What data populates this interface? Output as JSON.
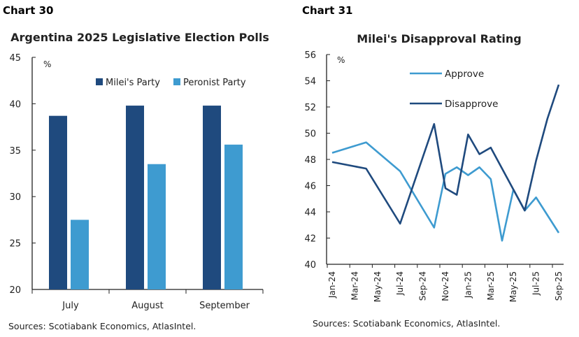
{
  "chart_data": [
    {
      "label": "Chart 30",
      "type": "bar",
      "title": "Argentina 2025 Legislative Election Polls",
      "ylabel": "%",
      "ylim": [
        20,
        45
      ],
      "yticks": [
        20,
        25,
        30,
        35,
        40,
        45
      ],
      "categories": [
        "July",
        "August",
        "September"
      ],
      "series": [
        {
          "name": "Milei's Party",
          "color": "#1f4a7e",
          "values": [
            38.7,
            39.8,
            39.8
          ]
        },
        {
          "name": "Peronist Party",
          "color": "#3e9bd0",
          "values": [
            27.5,
            33.5,
            35.6
          ]
        }
      ],
      "legend": "top-right",
      "source": "Sources: Scotiabank Economics, AtlasIntel."
    },
    {
      "label": "Chart 31",
      "type": "line",
      "title": "Milei's Disapproval Rating",
      "ylabel": "%",
      "ylim": [
        40,
        56
      ],
      "yticks": [
        40,
        42,
        44,
        46,
        48,
        50,
        52,
        54,
        56
      ],
      "xticks": [
        "Jan-24",
        "Mar-24",
        "May-24",
        "Jul-24",
        "Sep-24",
        "Nov-24",
        "Jan-25",
        "Mar-25",
        "May-25",
        "Jul-25",
        "Sep-25"
      ],
      "series": [
        {
          "name": "Approve",
          "color": "#3e9bd0",
          "x": [
            "Jan-24",
            "Apr-24",
            "Jul-24",
            "Oct-24",
            "Nov-24",
            "Dec-24",
            "Jan-25",
            "Feb-25",
            "Mar-25",
            "Apr-25",
            "May-25",
            "Jun-25",
            "Jul-25",
            "Sep-25"
          ],
          "values": [
            48.5,
            49.3,
            47.1,
            42.8,
            46.9,
            47.4,
            46.8,
            47.4,
            46.5,
            41.8,
            45.7,
            44.1,
            45.1,
            42.4
          ]
        },
        {
          "name": "Disapprove",
          "color": "#1f4a7e",
          "x": [
            "Jan-24",
            "Apr-24",
            "Jul-24",
            "Oct-24",
            "Nov-24",
            "Dec-24",
            "Jan-25",
            "Feb-25",
            "Mar-25",
            "Jun-25",
            "Jul-25",
            "Aug-25",
            "Sep-25"
          ],
          "values": [
            47.8,
            47.3,
            43.1,
            50.7,
            45.8,
            45.3,
            49.9,
            48.4,
            48.9,
            44.1,
            47.9,
            51.1,
            53.7
          ]
        }
      ],
      "legend": "top-center",
      "source": "Sources: Scotiabank Economics, AtlasIntel."
    }
  ]
}
